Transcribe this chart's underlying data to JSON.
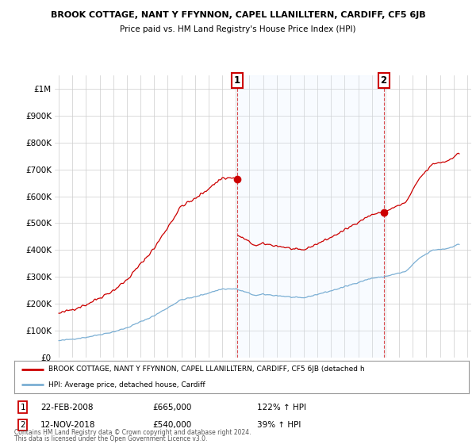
{
  "title": "BROOK COTTAGE, NANT Y FFYNNON, CAPEL LLANILLTERN, CARDIFF, CF5 6JB",
  "subtitle": "Price paid vs. HM Land Registry's House Price Index (HPI)",
  "ylim": [
    0,
    1050000
  ],
  "yticks": [
    0,
    100000,
    200000,
    300000,
    400000,
    500000,
    600000,
    700000,
    800000,
    900000,
    1000000
  ],
  "ytick_labels": [
    "£0",
    "£100K",
    "£200K",
    "£300K",
    "£400K",
    "£500K",
    "£600K",
    "£700K",
    "£800K",
    "£900K",
    "£1M"
  ],
  "xlim_left": 1994.7,
  "xlim_right": 2025.3,
  "transaction1_date": 2008.12,
  "transaction1_price": 665000,
  "transaction2_date": 2018.87,
  "transaction2_price": 540000,
  "transaction1_date_str": "22-FEB-2008",
  "transaction1_price_str": "£665,000",
  "transaction1_hpi": "122% ↑ HPI",
  "transaction2_date_str": "12-NOV-2018",
  "transaction2_price_str": "£540,000",
  "transaction2_hpi": "39% ↑ HPI",
  "hpi_line_color": "#7bafd4",
  "price_line_color": "#cc0000",
  "vline_color": "#cc0000",
  "shade_color": "#ddeeff",
  "grid_color": "#cccccc",
  "bg_color": "#ffffff",
  "legend_label_price": "BROOK COTTAGE, NANT Y FFYNNON, CAPEL LLANILLTERN, CARDIFF, CF5 6JB (detached h",
  "legend_label_hpi": "HPI: Average price, detached house, Cardiff",
  "footer1": "Contains HM Land Registry data © Crown copyright and database right 2024.",
  "footer2": "This data is licensed under the Open Government Licence v3.0."
}
